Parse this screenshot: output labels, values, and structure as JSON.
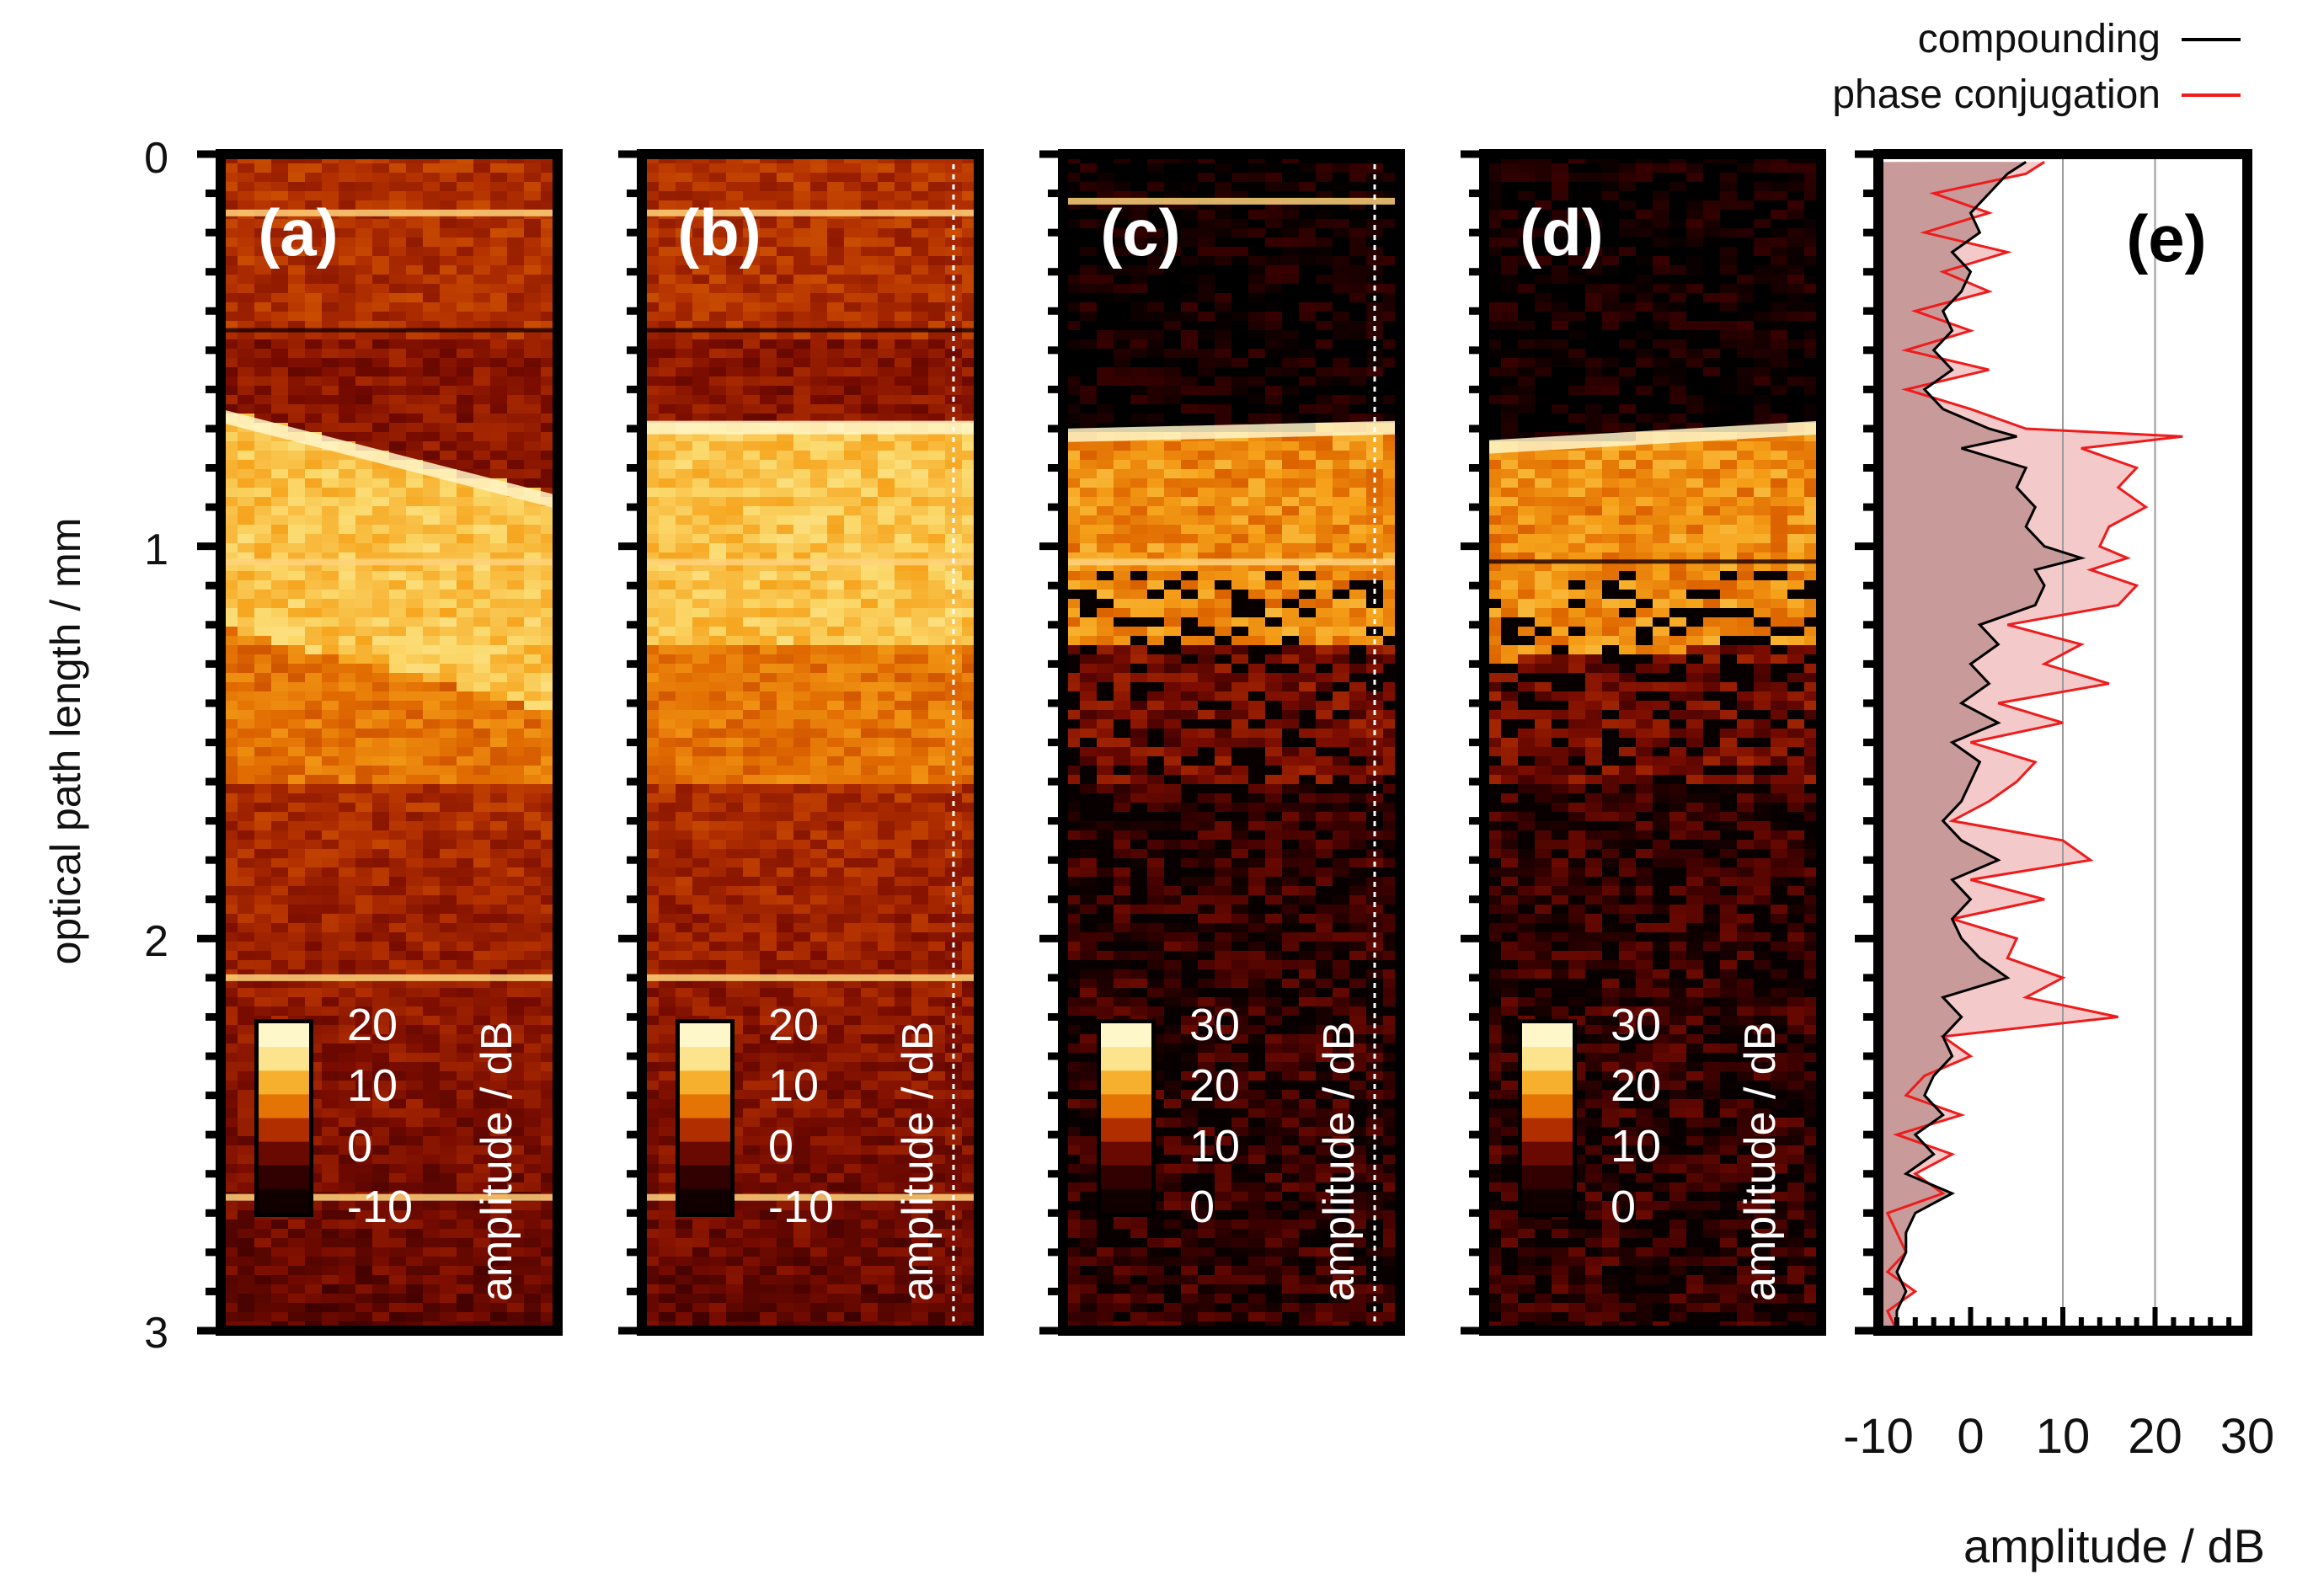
{
  "figure": {
    "y_axis": {
      "label": "optical path length / mm",
      "range": [
        0,
        3
      ],
      "ticks": [
        "0",
        "1",
        "2",
        "3"
      ],
      "inverted": true
    },
    "panels": [
      {
        "label": "(a)",
        "colorbar": {
          "title": "amplitude / dB",
          "ticks": [
            "20",
            "10",
            "0",
            "-10"
          ],
          "range": [
            -10,
            20
          ]
        },
        "dotted_line": false,
        "shallow_dark": false,
        "interface_mm": [
          0.65,
          0.87
        ],
        "bright_lines_mm": [
          0.15,
          1.04,
          2.1,
          2.66
        ],
        "dark_lines_mm": [
          0.45
        ]
      },
      {
        "label": "(b)",
        "colorbar": {
          "title": "amplitude / dB",
          "ticks": [
            "20",
            "10",
            "0",
            "-10"
          ],
          "range": [
            -10,
            20
          ]
        },
        "dotted_line": true,
        "shallow_dark": false,
        "interface_mm": [
          0.68,
          0.68
        ],
        "bright_lines_mm": [
          0.15,
          1.04,
          2.1,
          2.66
        ],
        "dark_lines_mm": [
          0.45
        ]
      },
      {
        "label": "(c)",
        "colorbar": {
          "title": "amplitude / dB",
          "ticks": [
            "30",
            "20",
            "10",
            "0"
          ],
          "range": [
            0,
            30
          ]
        },
        "dotted_line": true,
        "shallow_dark": true,
        "interface_mm": [
          0.7,
          0.68
        ],
        "bright_lines_mm": [
          0.12,
          1.04
        ],
        "dark_lines_mm": []
      },
      {
        "label": "(d)",
        "colorbar": {
          "title": "amplitude / dB",
          "ticks": [
            "30",
            "20",
            "10",
            "0"
          ],
          "range": [
            0,
            30
          ]
        },
        "dotted_line": false,
        "shallow_dark": true,
        "interface_mm": [
          0.73,
          0.68
        ],
        "bright_lines_mm": [],
        "dark_lines_mm": [
          1.04
        ]
      }
    ],
    "colors": {
      "colormap": [
        "#000000",
        "#3a0000",
        "#7a0c00",
        "#b33000",
        "#e06a00",
        "#f6a21a",
        "#fbd86a",
        "#ffffe4"
      ],
      "compounding": "#000000",
      "phase_conjugation": "#ee1c1c",
      "fill_dark": "#c99a9a",
      "fill_light": "#f4c9c9"
    }
  },
  "chart_data": {
    "type": "line",
    "panel_label": "(e)",
    "xlabel": "amplitude / dB",
    "ylabel": "optical path length / mm",
    "xlim": [
      -10,
      30
    ],
    "ylim": [
      3,
      0
    ],
    "xticks": [
      "-10",
      "0",
      "10",
      "20",
      "30"
    ],
    "grid_x": [
      10,
      20
    ],
    "legend_position": "top-right",
    "series": [
      {
        "name": "compounding",
        "y": [
          0.02,
          0.05,
          0.1,
          0.15,
          0.2,
          0.25,
          0.3,
          0.35,
          0.4,
          0.45,
          0.5,
          0.55,
          0.6,
          0.65,
          0.7,
          0.72,
          0.75,
          0.8,
          0.85,
          0.9,
          0.95,
          1.0,
          1.03,
          1.06,
          1.1,
          1.15,
          1.2,
          1.25,
          1.3,
          1.35,
          1.4,
          1.45,
          1.5,
          1.55,
          1.6,
          1.65,
          1.7,
          1.75,
          1.8,
          1.85,
          1.9,
          1.95,
          2.0,
          2.05,
          2.1,
          2.15,
          2.2,
          2.25,
          2.3,
          2.35,
          2.4,
          2.45,
          2.5,
          2.55,
          2.6,
          2.65,
          2.7,
          2.75,
          2.8,
          2.85,
          2.9,
          2.95,
          3.0
        ],
        "x": [
          6,
          4,
          2,
          0,
          1,
          -2,
          0,
          -1,
          -3,
          -2,
          -4,
          -2,
          -5,
          -3,
          2,
          5,
          -1,
          6,
          5,
          7,
          6,
          8,
          12,
          7,
          8,
          7,
          1,
          3,
          0,
          2,
          -1,
          3,
          -2,
          1,
          0,
          -1,
          -3,
          -1,
          3,
          -2,
          0,
          -2,
          -1,
          1,
          4,
          -3,
          -1,
          -3,
          -2,
          -4,
          -5,
          -3,
          -6,
          -4,
          -7,
          -2,
          -6,
          -7,
          -7,
          -8,
          -7,
          -8,
          -8
        ]
      },
      {
        "name": "phase conjugation",
        "y": [
          0.02,
          0.05,
          0.1,
          0.15,
          0.2,
          0.25,
          0.3,
          0.35,
          0.4,
          0.45,
          0.5,
          0.55,
          0.6,
          0.65,
          0.7,
          0.72,
          0.75,
          0.8,
          0.85,
          0.9,
          0.95,
          1.0,
          1.03,
          1.06,
          1.1,
          1.15,
          1.2,
          1.25,
          1.3,
          1.35,
          1.4,
          1.45,
          1.5,
          1.55,
          1.6,
          1.65,
          1.7,
          1.75,
          1.8,
          1.85,
          1.9,
          1.95,
          2.0,
          2.05,
          2.1,
          2.15,
          2.2,
          2.25,
          2.3,
          2.35,
          2.4,
          2.45,
          2.5,
          2.55,
          2.6,
          2.65,
          2.7,
          2.75,
          2.8,
          2.85,
          2.9,
          2.95,
          3.0
        ],
        "x": [
          8,
          6,
          -4,
          2,
          -5,
          4,
          -3,
          2,
          -6,
          0,
          -7,
          2,
          -7,
          0,
          6,
          23,
          12,
          18,
          16,
          19,
          15,
          14,
          17,
          13,
          18,
          16,
          4,
          12,
          8,
          15,
          3,
          10,
          0,
          7,
          5,
          2,
          -2,
          10,
          13,
          0,
          8,
          -2,
          5,
          4,
          10,
          6,
          16,
          -3,
          0,
          -5,
          -7,
          -1,
          -8,
          -2,
          -6,
          -3,
          -9,
          -8,
          -7,
          -9,
          -6,
          -9,
          -8
        ]
      }
    ]
  }
}
